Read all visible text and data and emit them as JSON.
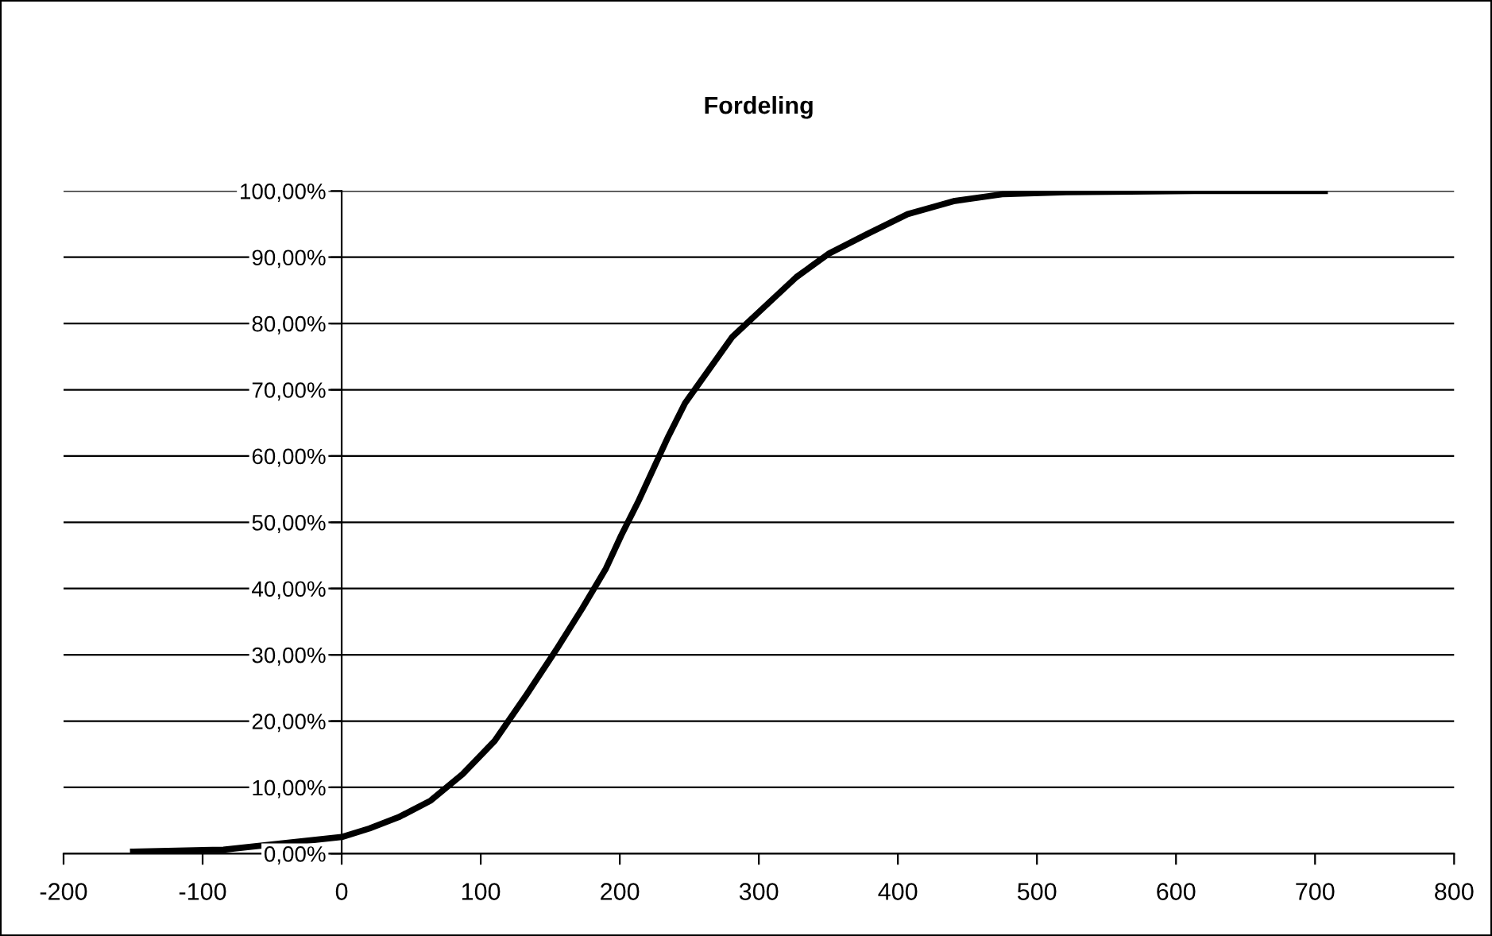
{
  "chart_data": {
    "type": "line",
    "title": "Fordeling",
    "x": [
      -150,
      -85,
      0,
      20,
      41,
      64,
      87,
      110,
      133,
      155,
      173,
      190,
      201,
      213,
      224,
      235,
      247,
      264,
      281,
      304,
      327,
      350,
      378,
      407,
      441,
      475,
      521,
      613,
      707
    ],
    "series": [
      {
        "color": "#000000",
        "values": [
          0.3,
          0.6,
          2.5,
          3.8,
          5.5,
          8,
          12,
          17,
          24,
          31,
          37,
          43,
          48,
          53,
          58,
          63,
          68,
          73,
          78,
          82.5,
          87,
          90.5,
          93.5,
          96.5,
          98.5,
          99.5,
          99.8,
          100,
          100
        ]
      }
    ],
    "xlim": [
      -200,
      800
    ],
    "xticks": [
      -200,
      -100,
      0,
      100,
      200,
      300,
      400,
      500,
      600,
      700,
      800
    ],
    "ylim": [
      0,
      100
    ],
    "yticks": [
      {
        "value": 0,
        "label": "0,00%"
      },
      {
        "value": 10,
        "label": "10,00%"
      },
      {
        "value": 20,
        "label": "20,00%"
      },
      {
        "value": 30,
        "label": "30,00%"
      },
      {
        "value": 40,
        "label": "40,00%"
      },
      {
        "value": 50,
        "label": "50,00%"
      },
      {
        "value": 60,
        "label": "60,00%"
      },
      {
        "value": 70,
        "label": "70,00%"
      },
      {
        "value": 80,
        "label": "80,00%"
      },
      {
        "value": 90,
        "label": "90,00%"
      },
      {
        "value": 100,
        "label": "100,00%"
      }
    ],
    "grid": "y",
    "legend": false,
    "marker": "none",
    "line_style": "solid"
  }
}
